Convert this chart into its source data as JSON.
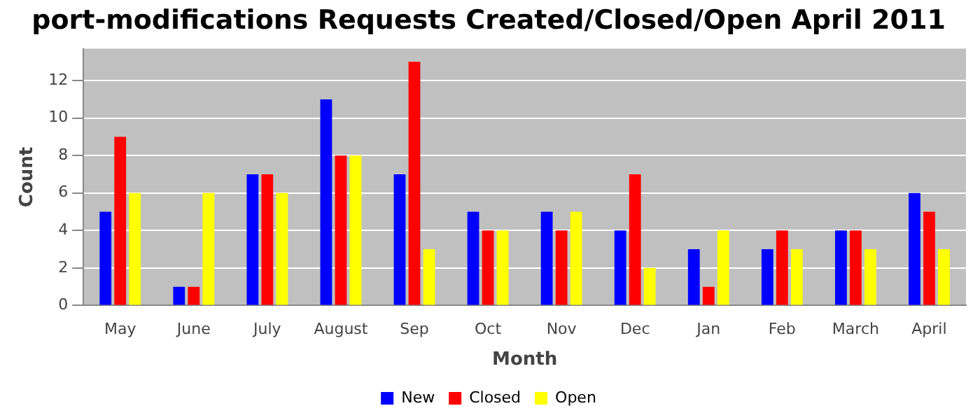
{
  "chart_data": {
    "type": "bar",
    "title": "port-modifications Requests Created/Closed/Open April 2011",
    "xlabel": "Month",
    "ylabel": "Count",
    "categories": [
      "May",
      "June",
      "July",
      "August",
      "Sep",
      "Oct",
      "Nov",
      "Dec",
      "Jan",
      "Feb",
      "March",
      "April"
    ],
    "series": [
      {
        "name": "New",
        "color": "#0000ff",
        "values": [
          5,
          1,
          7,
          11,
          7,
          5,
          5,
          4,
          3,
          3,
          4,
          6
        ]
      },
      {
        "name": "Closed",
        "color": "#ff0000",
        "values": [
          9,
          1,
          7,
          8,
          13,
          4,
          4,
          7,
          1,
          4,
          4,
          5
        ]
      },
      {
        "name": "Open",
        "color": "#ffff00",
        "values": [
          6,
          6,
          6,
          8,
          3,
          4,
          5,
          2,
          4,
          3,
          3,
          3
        ]
      }
    ],
    "ylim": [
      0,
      13.7
    ],
    "yticks": [
      0,
      2,
      4,
      6,
      8,
      10,
      12
    ],
    "grid": "y",
    "legend": "bottom"
  }
}
